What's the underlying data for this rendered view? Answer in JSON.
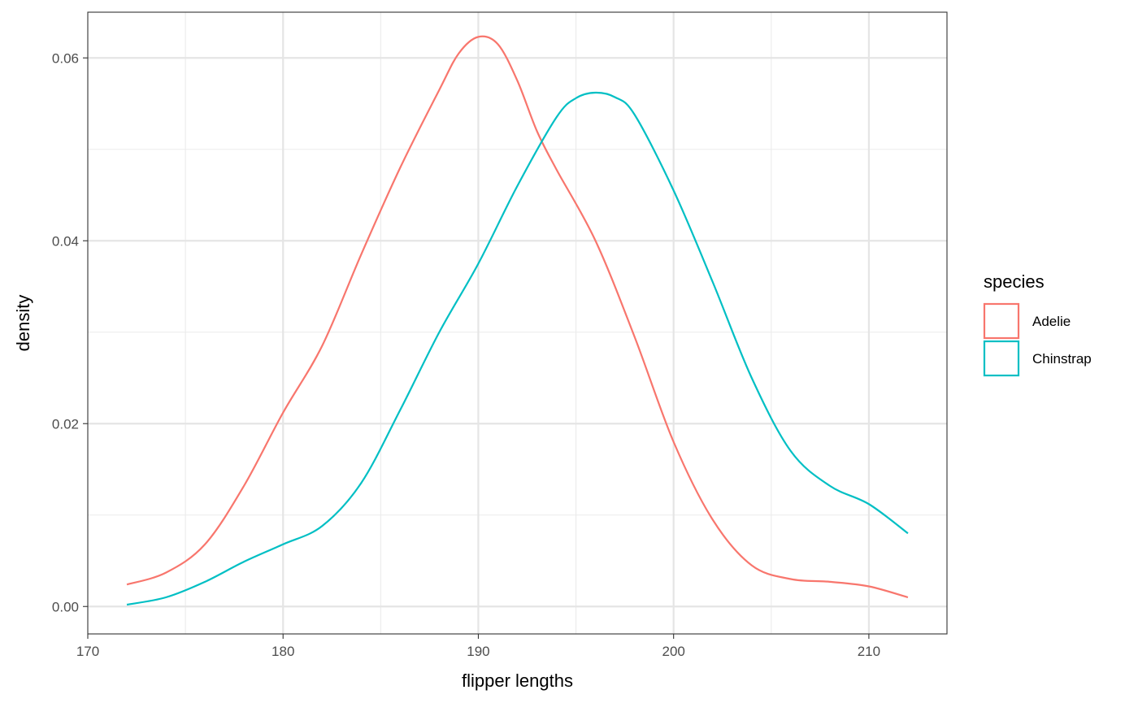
{
  "chart_data": {
    "type": "line",
    "title": "",
    "xlabel": "flipper lengths",
    "ylabel": "density",
    "xlim": [
      170,
      214
    ],
    "ylim": [
      -0.003,
      0.065
    ],
    "x_ticks": [
      170,
      180,
      190,
      200,
      210
    ],
    "y_ticks": [
      0.0,
      0.02,
      0.04,
      0.06
    ],
    "x_tick_labels": [
      "170",
      "180",
      "190",
      "200",
      "210"
    ],
    "y_tick_labels": [
      "0.00",
      "0.02",
      "0.04",
      "0.06"
    ],
    "grid": true,
    "legend": {
      "title": "species",
      "position": "right"
    },
    "series": [
      {
        "name": "Adelie",
        "color": "#F8766D",
        "x": [
          172,
          174,
          176,
          178,
          180,
          182,
          184,
          186,
          188,
          189,
          190,
          191,
          192,
          193,
          194,
          196,
          198,
          200,
          202,
          204,
          206,
          208,
          210,
          212
        ],
        "y": [
          0.0024,
          0.0037,
          0.0068,
          0.0132,
          0.0212,
          0.0285,
          0.0385,
          0.048,
          0.0565,
          0.0605,
          0.0623,
          0.0615,
          0.0575,
          0.052,
          0.0478,
          0.04,
          0.0295,
          0.018,
          0.0095,
          0.0045,
          0.003,
          0.0027,
          0.0022,
          0.001
        ]
      },
      {
        "name": "Chinstrap",
        "color": "#00BFC4",
        "x": [
          172,
          174,
          176,
          178,
          180,
          182,
          184,
          186,
          188,
          190,
          192,
          194,
          195,
          196,
          197,
          198,
          200,
          202,
          204,
          206,
          208,
          210,
          212
        ],
        "y": [
          0.0002,
          0.001,
          0.0027,
          0.0049,
          0.0068,
          0.0088,
          0.0135,
          0.0215,
          0.03,
          0.0375,
          0.046,
          0.0535,
          0.0556,
          0.0562,
          0.0557,
          0.0538,
          0.0455,
          0.0355,
          0.025,
          0.017,
          0.0132,
          0.0112,
          0.008
        ]
      }
    ]
  }
}
